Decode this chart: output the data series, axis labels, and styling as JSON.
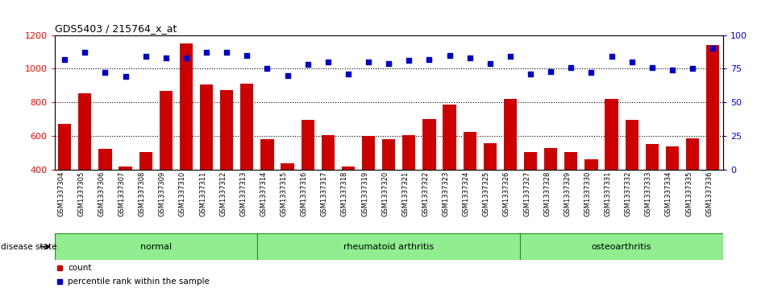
{
  "title": "GDS5403 / 215764_x_at",
  "samples": [
    "GSM1337304",
    "GSM1337305",
    "GSM1337306",
    "GSM1337307",
    "GSM1337308",
    "GSM1337309",
    "GSM1337310",
    "GSM1337311",
    "GSM1337312",
    "GSM1337313",
    "GSM1337314",
    "GSM1337315",
    "GSM1337316",
    "GSM1337317",
    "GSM1337318",
    "GSM1337319",
    "GSM1337320",
    "GSM1337321",
    "GSM1337322",
    "GSM1337323",
    "GSM1337324",
    "GSM1337325",
    "GSM1337326",
    "GSM1337327",
    "GSM1337328",
    "GSM1337329",
    "GSM1337330",
    "GSM1337331",
    "GSM1337332",
    "GSM1337333",
    "GSM1337334",
    "GSM1337335",
    "GSM1337336"
  ],
  "bar_values": [
    670,
    855,
    520,
    415,
    505,
    865,
    1150,
    905,
    870,
    910,
    580,
    435,
    695,
    605,
    415,
    600,
    580,
    605,
    700,
    785,
    625,
    555,
    820,
    505,
    525,
    505,
    460,
    820,
    695,
    550,
    535,
    585,
    1140
  ],
  "percentile_values": [
    82,
    87,
    72,
    69,
    84,
    83,
    83,
    87,
    87,
    85,
    75,
    70,
    78,
    80,
    71,
    80,
    79,
    81,
    82,
    85,
    83,
    79,
    84,
    71,
    73,
    76,
    72,
    84,
    80,
    76,
    74,
    75,
    90
  ],
  "bar_color": "#cc0000",
  "dot_color": "#0000cc",
  "ylim_left": [
    400,
    1200
  ],
  "ylim_right": [
    0,
    100
  ],
  "yticks_left": [
    400,
    600,
    800,
    1000,
    1200
  ],
  "yticks_right": [
    0,
    25,
    50,
    75,
    100
  ],
  "hgrid_values": [
    600,
    800,
    1000
  ],
  "groups": [
    {
      "label": "normal",
      "start": 0,
      "end": 10
    },
    {
      "label": "rheumatoid arthritis",
      "start": 10,
      "end": 23
    },
    {
      "label": "osteoarthritis",
      "start": 23,
      "end": 33
    }
  ],
  "group_color": "#90EE90",
  "group_border_color": "#228B22",
  "xtick_bg_color": "#c8c8c8",
  "disease_state_label": "disease state",
  "legend_count_label": "count",
  "legend_pct_label": "percentile rank within the sample",
  "fig_width": 9.39,
  "fig_height": 3.63,
  "dpi": 100
}
